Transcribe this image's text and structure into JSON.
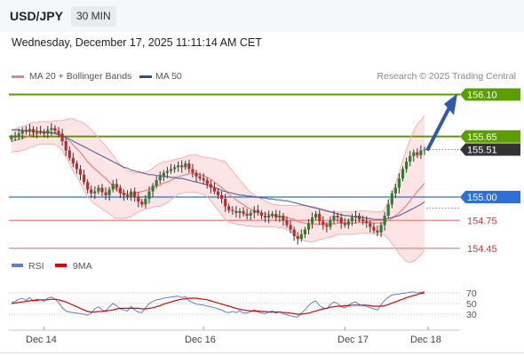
{
  "header": {
    "symbol": "USD/JPY",
    "timeframe": "30 MIN"
  },
  "datetime": "Wednesday, December 17, 2025 11:11:14 AM CET",
  "legend": {
    "bb_label": "MA 20 + Bollinger Bands",
    "ma50_label": "MA 50",
    "credit": "Research © 2025 Trading Central"
  },
  "colors": {
    "bb": "#f08080",
    "ma50": "#2f4f8f",
    "resistance": "#5a9e00",
    "support": "#2e6fd8",
    "band_fill": "#fde0e0",
    "up": "#2e7d32",
    "down": "#c62828",
    "last": "#333333"
  },
  "levels": [
    {
      "value": 156.1,
      "label": "156.10",
      "kind": "resistance"
    },
    {
      "value": 155.65,
      "label": "155.65",
      "kind": "resistance"
    },
    {
      "value": 155.51,
      "label": "155.51",
      "kind": "last"
    },
    {
      "value": 155.0,
      "label": "155.00",
      "kind": "pivot"
    },
    {
      "value": 154.75,
      "label": "154.75",
      "kind": "support"
    },
    {
      "value": 154.45,
      "label": "154.45",
      "kind": "support"
    }
  ],
  "rsi_legend": {
    "rsi_label": "RSI",
    "ma_label": "9MA",
    "rsi_color": "#5a7fd8",
    "ma_color": "#e00000"
  },
  "x_labels": [
    "Dec 14",
    "Dec 16",
    "Dec 17",
    "Dec 18"
  ],
  "chart_data": {
    "type": "candlestick",
    "price_range": [
      154.4,
      156.2
    ],
    "x_range": [
      0,
      115
    ],
    "x_ticks": [
      {
        "x": 9,
        "label": "Dec 14"
      },
      {
        "x": 53,
        "label": "Dec 16"
      },
      {
        "x": 92,
        "label": "Dec 17"
      },
      {
        "x": 115,
        "label": "Dec 18"
      }
    ],
    "closes": [
      155.64,
      155.66,
      155.68,
      155.72,
      155.7,
      155.73,
      155.69,
      155.71,
      155.7,
      155.68,
      155.72,
      155.74,
      155.71,
      155.68,
      155.6,
      155.5,
      155.42,
      155.36,
      155.3,
      155.24,
      155.16,
      155.08,
      155.04,
      155.06,
      155.1,
      155.05,
      155.02,
      155.08,
      155.14,
      155.1,
      155.04,
      155.02,
      155.0,
      155.06,
      155.0,
      154.95,
      154.92,
      154.98,
      155.06,
      155.12,
      155.18,
      155.22,
      155.26,
      155.28,
      155.3,
      155.32,
      155.34,
      155.32,
      155.36,
      155.3,
      155.26,
      155.22,
      155.2,
      155.18,
      155.14,
      155.1,
      155.06,
      155.02,
      154.98,
      154.9,
      154.86,
      154.85,
      154.83,
      154.85,
      154.82,
      154.8,
      154.83,
      154.86,
      154.83,
      154.8,
      154.78,
      154.8,
      154.82,
      154.78,
      154.8,
      154.75,
      154.7,
      154.65,
      154.58,
      154.55,
      154.6,
      154.65,
      154.72,
      154.78,
      154.82,
      154.74,
      154.7,
      154.68,
      154.75,
      154.8,
      154.78,
      154.72,
      154.7,
      154.74,
      154.78,
      154.8,
      154.76,
      154.74,
      154.72,
      154.68,
      154.64,
      154.62,
      154.7,
      154.8,
      154.92,
      155.04,
      155.1,
      155.2,
      155.3,
      155.38,
      155.44,
      155.48,
      155.45,
      155.5,
      155.51
    ],
    "ma20": [
      155.6,
      155.61,
      155.62,
      155.63,
      155.64,
      155.66,
      155.67,
      155.68,
      155.69,
      155.69,
      155.69,
      155.69,
      155.69,
      155.68,
      155.66,
      155.63,
      155.6,
      155.56,
      155.52,
      155.48,
      155.43,
      155.38,
      155.34,
      155.3,
      155.27,
      155.23,
      155.2,
      155.16,
      155.12,
      155.08,
      155.06,
      155.04,
      155.03,
      155.03,
      155.04,
      155.05,
      155.06,
      155.07,
      155.08,
      155.1,
      155.12,
      155.13,
      155.15,
      155.16,
      155.18,
      155.2,
      155.22,
      155.23,
      155.24,
      155.25,
      155.25,
      155.25,
      155.24,
      155.23,
      155.21,
      155.19,
      155.16,
      155.13,
      155.1,
      155.07,
      155.03,
      155.0,
      154.97,
      154.94,
      154.92,
      154.89,
      154.87,
      154.85,
      154.84,
      154.83,
      154.82,
      154.81,
      154.8,
      154.8,
      154.79,
      154.79,
      154.78,
      154.77,
      154.76,
      154.74,
      154.73,
      154.72,
      154.71,
      154.71,
      154.71,
      154.71,
      154.71,
      154.71,
      154.71,
      154.71,
      154.72,
      154.72,
      154.72,
      154.72,
      154.72,
      154.72,
      154.73,
      154.73,
      154.73,
      154.73,
      154.72,
      154.72,
      154.72,
      154.73,
      154.75,
      154.77,
      154.8,
      154.83,
      154.87,
      154.91,
      154.96,
      155.01,
      155.06,
      155.1,
      155.15
    ],
    "ma50": [
      155.72,
      155.72,
      155.72,
      155.71,
      155.71,
      155.71,
      155.71,
      155.7,
      155.7,
      155.7,
      155.69,
      155.69,
      155.68,
      155.67,
      155.66,
      155.64,
      155.62,
      155.6,
      155.58,
      155.56,
      155.54,
      155.52,
      155.5,
      155.48,
      155.46,
      155.44,
      155.42,
      155.4,
      155.38,
      155.36,
      155.34,
      155.32,
      155.31,
      155.29,
      155.28,
      155.27,
      155.26,
      155.25,
      155.24,
      155.24,
      155.23,
      155.23,
      155.22,
      155.22,
      155.21,
      155.21,
      155.2,
      155.2,
      155.19,
      155.18,
      155.17,
      155.16,
      155.15,
      155.14,
      155.13,
      155.12,
      155.1,
      155.09,
      155.07,
      155.06,
      155.05,
      155.04,
      155.03,
      155.02,
      155.02,
      155.01,
      155.01,
      155.0,
      155.0,
      154.99,
      154.99,
      154.98,
      154.98,
      154.97,
      154.97,
      154.96,
      154.96,
      154.95,
      154.94,
      154.93,
      154.92,
      154.91,
      154.9,
      154.89,
      154.88,
      154.87,
      154.86,
      154.85,
      154.84,
      154.83,
      154.82,
      154.81,
      154.8,
      154.8,
      154.79,
      154.79,
      154.78,
      154.78,
      154.77,
      154.77,
      154.76,
      154.76,
      154.76,
      154.76,
      154.77,
      154.78,
      154.79,
      154.8,
      154.82,
      154.84,
      154.86,
      154.88,
      154.9,
      154.92,
      154.95
    ],
    "bb_width": [
      0.12,
      0.12,
      0.13,
      0.13,
      0.13,
      0.13,
      0.13,
      0.12,
      0.12,
      0.12,
      0.12,
      0.12,
      0.13,
      0.14,
      0.16,
      0.2,
      0.24,
      0.28,
      0.3,
      0.33,
      0.36,
      0.38,
      0.38,
      0.38,
      0.37,
      0.36,
      0.35,
      0.34,
      0.33,
      0.31,
      0.29,
      0.27,
      0.25,
      0.24,
      0.22,
      0.21,
      0.2,
      0.2,
      0.2,
      0.21,
      0.22,
      0.23,
      0.23,
      0.22,
      0.21,
      0.2,
      0.19,
      0.19,
      0.19,
      0.2,
      0.2,
      0.2,
      0.2,
      0.2,
      0.21,
      0.23,
      0.25,
      0.27,
      0.29,
      0.31,
      0.3,
      0.28,
      0.26,
      0.24,
      0.22,
      0.2,
      0.18,
      0.17,
      0.16,
      0.15,
      0.14,
      0.13,
      0.12,
      0.12,
      0.12,
      0.12,
      0.13,
      0.14,
      0.15,
      0.17,
      0.18,
      0.19,
      0.19,
      0.19,
      0.18,
      0.17,
      0.16,
      0.15,
      0.14,
      0.13,
      0.12,
      0.12,
      0.12,
      0.12,
      0.12,
      0.12,
      0.12,
      0.12,
      0.12,
      0.12,
      0.12,
      0.12,
      0.12,
      0.14,
      0.2,
      0.27,
      0.35,
      0.44,
      0.52,
      0.6,
      0.66,
      0.7,
      0.72,
      0.72,
      0.72
    ],
    "rsi_range": [
      0,
      100
    ],
    "rsi_levels": [
      70,
      50,
      30
    ],
    "rsi": [
      52,
      54,
      58,
      60,
      56,
      61,
      55,
      58,
      57,
      54,
      60,
      62,
      58,
      52,
      42,
      36,
      34,
      33,
      32,
      31,
      30,
      28,
      32,
      40,
      44,
      38,
      36,
      44,
      50,
      46,
      40,
      38,
      36,
      45,
      38,
      34,
      33,
      42,
      50,
      54,
      57,
      58,
      60,
      61,
      62,
      63,
      64,
      61,
      63,
      55,
      52,
      49,
      48,
      47,
      45,
      44,
      42,
      40,
      38,
      34,
      33,
      35,
      33,
      36,
      32,
      32,
      35,
      38,
      34,
      32,
      31,
      34,
      36,
      32,
      35,
      31,
      29,
      27,
      25,
      25,
      32,
      38,
      46,
      52,
      55,
      46,
      42,
      40,
      48,
      53,
      50,
      44,
      42,
      47,
      51,
      53,
      48,
      46,
      45,
      42,
      40,
      38,
      48,
      56,
      62,
      66,
      67,
      68,
      69,
      70,
      71,
      72,
      70,
      71,
      72
    ],
    "rsi_ma": [
      50,
      51,
      52,
      53,
      54,
      55,
      56,
      56,
      57,
      57,
      57,
      58,
      58,
      57,
      55,
      53,
      50,
      47,
      44,
      41,
      38,
      35,
      34,
      34,
      35,
      35,
      36,
      37,
      38,
      40,
      41,
      41,
      41,
      41,
      41,
      41,
      40,
      40,
      41,
      42,
      44,
      46,
      49,
      51,
      53,
      55,
      57,
      58,
      59,
      60,
      60,
      60,
      59,
      58,
      57,
      55,
      53,
      51,
      49,
      47,
      45,
      43,
      41,
      39,
      38,
      37,
      36,
      36,
      36,
      35,
      35,
      34,
      34,
      34,
      34,
      33,
      33,
      32,
      31,
      30,
      30,
      31,
      32,
      34,
      36,
      38,
      40,
      41,
      43,
      44,
      45,
      45,
      46,
      46,
      47,
      47,
      47,
      47,
      47,
      46,
      45,
      45,
      45,
      46,
      48,
      51,
      53,
      56,
      58,
      61,
      63,
      65,
      67,
      69,
      70
    ]
  }
}
